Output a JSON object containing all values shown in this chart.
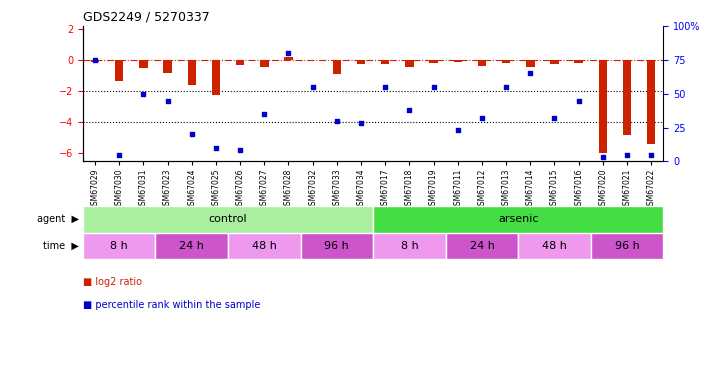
{
  "title": "GDS2249 / 5270337",
  "samples": [
    "GSM67029",
    "GSM67030",
    "GSM67031",
    "GSM67023",
    "GSM67024",
    "GSM67025",
    "GSM67026",
    "GSM67027",
    "GSM67028",
    "GSM67032",
    "GSM67033",
    "GSM67034",
    "GSM67017",
    "GSM67018",
    "GSM67019",
    "GSM67011",
    "GSM67012",
    "GSM67013",
    "GSM67014",
    "GSM67015",
    "GSM67016",
    "GSM67020",
    "GSM67021",
    "GSM67022"
  ],
  "log2_ratio": [
    -0.1,
    -1.3,
    -0.5,
    -0.8,
    -1.6,
    -2.2,
    -0.3,
    -0.4,
    0.25,
    0.05,
    -0.9,
    -0.25,
    -0.25,
    -0.45,
    -0.15,
    -0.1,
    -0.35,
    -0.15,
    -0.45,
    -0.25,
    -0.15,
    -6.0,
    -4.8,
    -5.4
  ],
  "percentile": [
    75,
    5,
    50,
    45,
    20,
    10,
    8,
    35,
    80,
    55,
    30,
    28,
    55,
    38,
    55,
    23,
    32,
    55,
    65,
    32,
    45,
    3,
    5,
    5
  ],
  "agent_groups": [
    {
      "label": "control",
      "start": 0,
      "end": 12,
      "color": "#AAEEA0"
    },
    {
      "label": "arsenic",
      "start": 12,
      "end": 24,
      "color": "#44DD44"
    }
  ],
  "time_groups": [
    {
      "label": "8 h",
      "start": 0,
      "end": 3,
      "color": "#EE99EE"
    },
    {
      "label": "24 h",
      "start": 3,
      "end": 6,
      "color": "#CC55CC"
    },
    {
      "label": "48 h",
      "start": 6,
      "end": 9,
      "color": "#EE99EE"
    },
    {
      "label": "96 h",
      "start": 9,
      "end": 12,
      "color": "#CC55CC"
    },
    {
      "label": "8 h",
      "start": 12,
      "end": 15,
      "color": "#EE99EE"
    },
    {
      "label": "24 h",
      "start": 15,
      "end": 18,
      "color": "#CC55CC"
    },
    {
      "label": "48 h",
      "start": 18,
      "end": 21,
      "color": "#EE99EE"
    },
    {
      "label": "96 h",
      "start": 21,
      "end": 24,
      "color": "#CC55CC"
    }
  ],
  "ylim_left": [
    -6.5,
    2.2
  ],
  "ylim_right": [
    0,
    100
  ],
  "yticks_left": [
    -6,
    -4,
    -2,
    0,
    2
  ],
  "yticks_right": [
    0,
    25,
    50,
    75,
    100
  ],
  "bar_color": "#CC2200",
  "dot_color": "#0000CC",
  "dotted_lines": [
    -2,
    -4
  ],
  "background_color": "#FFFFFF",
  "n_samples": 24,
  "bar_width": 0.35
}
